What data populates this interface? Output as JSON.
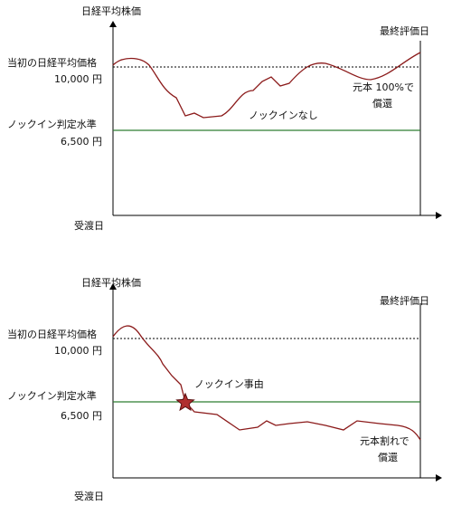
{
  "panels": [
    {
      "y_axis_label": "日経平均株価",
      "final_label": "最終評価日",
      "initial_label": "当初の日経平均価格",
      "initial_value": "10,000 円",
      "knockin_label": "ノックイン判定水準",
      "knockin_value": "6,500 円",
      "x_label": "受渡日",
      "annotations": [
        "ノックインなし",
        "元本 100%で",
        "償還"
      ]
    },
    {
      "y_axis_label": "日経平均株価",
      "final_label": "最終評価日",
      "initial_label": "当初の日経平均価格",
      "initial_value": "10,000 円",
      "knockin_label": "ノックイン判定水準",
      "knockin_value": "6,500 円",
      "x_label": "受渡日",
      "annotations": [
        "ノックイン事由",
        "元本割れで",
        "償還"
      ]
    }
  ]
}
